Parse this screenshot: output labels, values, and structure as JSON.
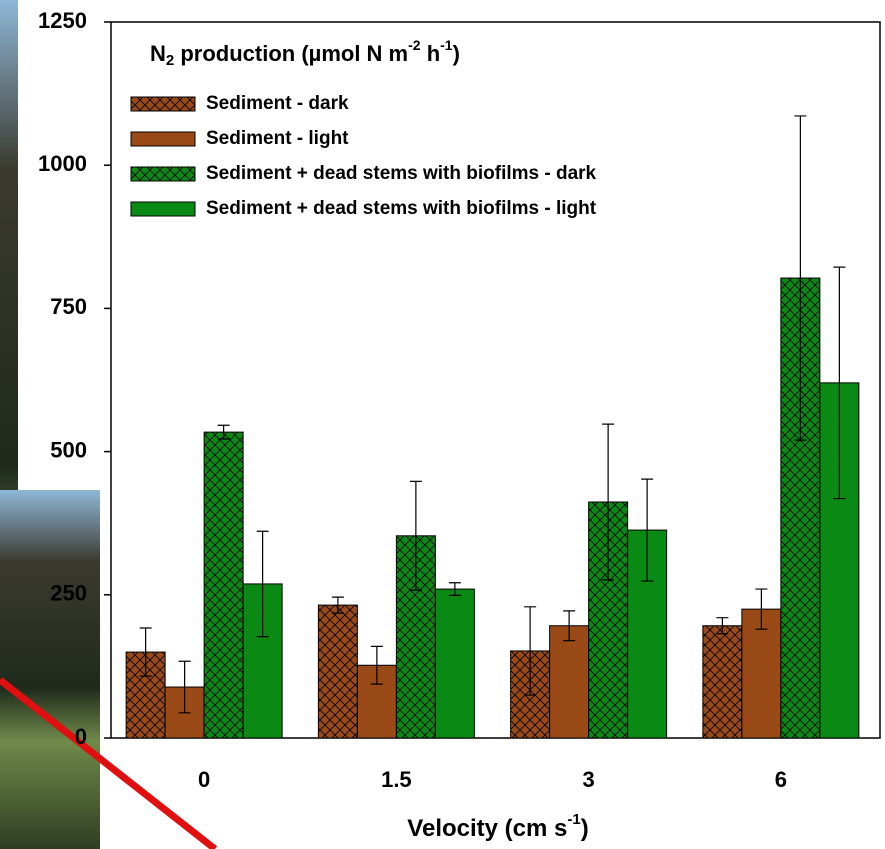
{
  "chart_data": {
    "type": "bar",
    "title": [
      "N",
      "2",
      " production (µmol N m",
      "-2",
      " h",
      "-1",
      ")"
    ],
    "x_label": [
      "Velocity (cm s",
      "-1",
      ")"
    ],
    "categories": [
      "0",
      "1.5",
      "3",
      "6"
    ],
    "series": [
      {
        "name": "Sediment - dark",
        "color": "#994a16",
        "hatch": true,
        "values": [
          150,
          232,
          152,
          196
        ],
        "errors": [
          42,
          14,
          77,
          14
        ]
      },
      {
        "name": "Sediment - light",
        "color": "#994a16",
        "hatch": false,
        "values": [
          89,
          127,
          196,
          225
        ],
        "errors": [
          45,
          33,
          26,
          35
        ]
      },
      {
        "name": "Sediment + dead stems with biofilms - dark",
        "color": "#0a8a14",
        "hatch": true,
        "values": [
          534,
          353,
          412,
          803
        ],
        "errors": [
          12,
          95,
          136,
          283
        ]
      },
      {
        "name": "Sediment + dead stems with biofilms - light",
        "color": "#0a8a14",
        "hatch": false,
        "values": [
          269,
          260,
          363,
          620
        ],
        "errors": [
          92,
          11,
          89,
          202
        ]
      }
    ],
    "ylim": [
      0,
      1250
    ],
    "yticks": [
      0,
      250,
      500,
      750,
      1000,
      1250
    ]
  }
}
